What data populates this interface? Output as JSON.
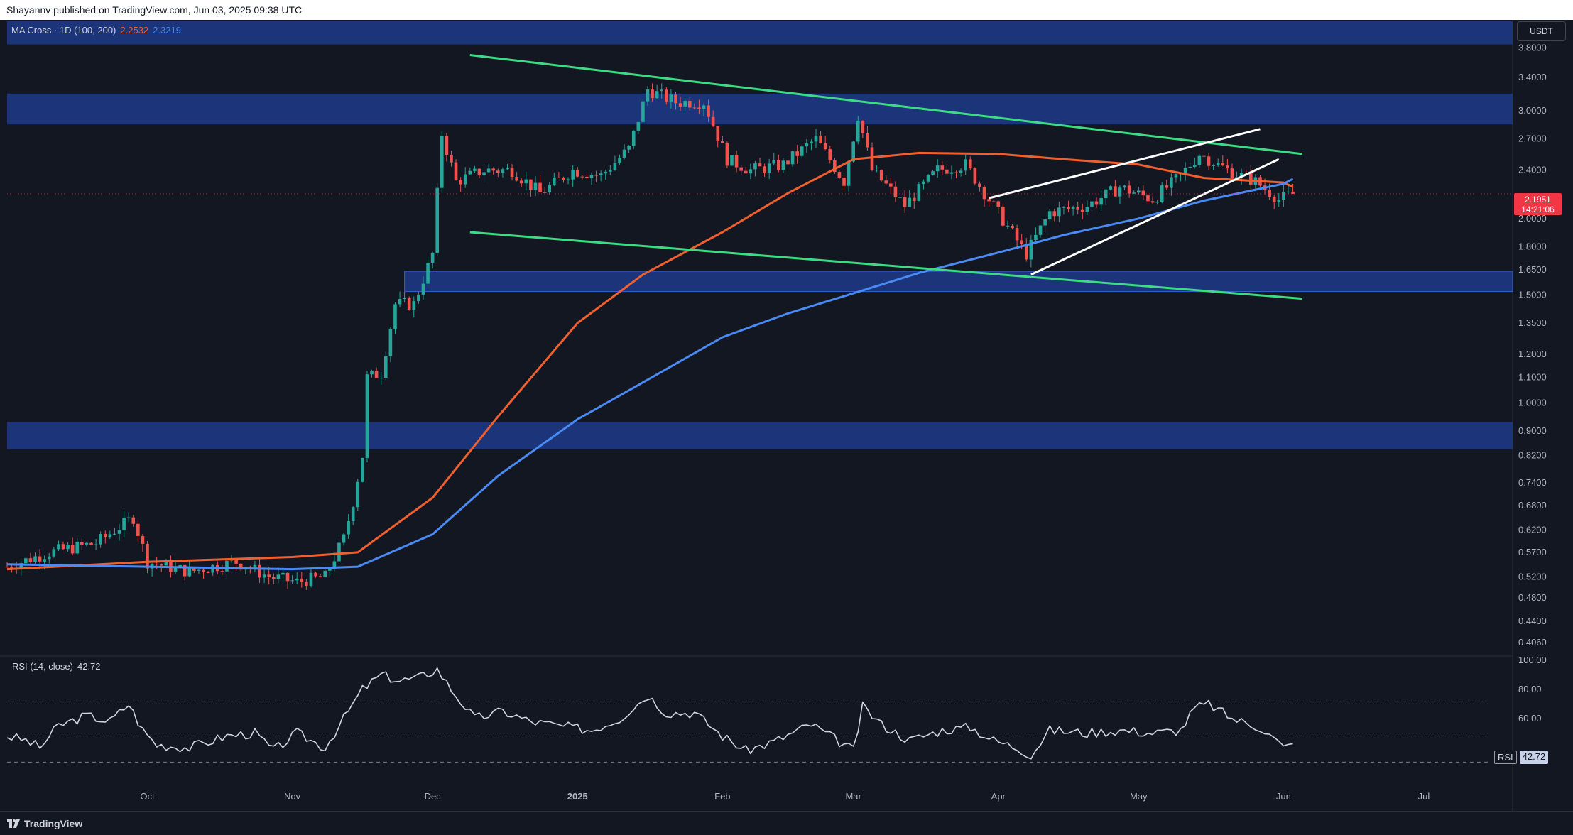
{
  "header": {
    "publisher_text": "Shayannv published on TradingView.com, Jun 03, 2025 09:38 UTC"
  },
  "legend": {
    "indicator": "MA Cross · 1D (100, 200)",
    "ma100_value": "2.2532",
    "ma200_value": "2.3219"
  },
  "currency_button": "USDT",
  "price_badge": {
    "price": "2.1951",
    "countdown": "14:21:06"
  },
  "rsi": {
    "label": "RSI (14, close)",
    "value": "42.72",
    "badge_label": "RSI",
    "badge_value": "42.72"
  },
  "footer": {
    "brand": "TradingView"
  },
  "colors": {
    "background": "#131722",
    "bull": "#26a69a",
    "bear": "#ef5350",
    "ma100": "#f0602f",
    "ma200": "#4a8af4",
    "zone": "#1d3a8a",
    "channel": "#3ddc84",
    "wedge": "#ffffff",
    "rsi_line": "#d1d4dc",
    "price_badge": "#f23645"
  },
  "chart_data": [
    {
      "type": "candlestick",
      "title": "",
      "ylabel": "USDT",
      "yscale": "log",
      "y_ticks": [
        "3.8000",
        "3.4000",
        "3.0000",
        "2.7000",
        "2.4000",
        "2.0000",
        "1.8000",
        "1.6500",
        "1.5000",
        "1.3500",
        "1.2000",
        "1.1000",
        "1.0000",
        "0.9000",
        "0.8200",
        "0.7400",
        "0.6800",
        "0.6200",
        "0.5700",
        "0.5200",
        "0.4800",
        "0.4400",
        "0.4060"
      ],
      "x_ticks": [
        "Oct",
        "Nov",
        "Dec",
        "2025",
        "Feb",
        "Mar",
        "Apr",
        "May",
        "Jun",
        "Jul"
      ],
      "x_tick_dates": [
        "2024-10-01",
        "2024-11-01",
        "2024-12-01",
        "2025-01-01",
        "2025-02-01",
        "2025-03-01",
        "2025-04-01",
        "2025-05-01",
        "2025-06-01",
        "2025-07-01"
      ],
      "x_range": [
        "2024-09-01",
        "2025-07-20"
      ],
      "y_range": [
        0.39,
        4.2
      ],
      "close_path": [
        [
          "2024-09-01",
          0.54
        ],
        [
          "2024-09-10",
          0.57
        ],
        [
          "2024-09-20",
          0.59
        ],
        [
          "2024-09-28",
          0.65
        ],
        [
          "2024-10-01",
          0.55
        ],
        [
          "2024-10-10",
          0.53
        ],
        [
          "2024-10-20",
          0.55
        ],
        [
          "2024-10-27",
          0.52
        ],
        [
          "2024-11-02",
          0.51
        ],
        [
          "2024-11-08",
          0.52
        ],
        [
          "2024-11-12",
          0.6
        ],
        [
          "2024-11-14",
          0.69
        ],
        [
          "2024-11-16",
          0.82
        ],
        [
          "2024-11-17",
          1.1
        ],
        [
          "2024-11-20",
          1.12
        ],
        [
          "2024-11-23",
          1.45
        ],
        [
          "2024-11-27",
          1.45
        ],
        [
          "2024-12-01",
          1.75
        ],
        [
          "2024-12-03",
          2.75
        ],
        [
          "2024-12-06",
          2.3
        ],
        [
          "2024-12-12",
          2.4
        ],
        [
          "2024-12-18",
          2.4
        ],
        [
          "2024-12-24",
          2.2
        ],
        [
          "2024-12-31",
          2.4
        ],
        [
          "2025-01-06",
          2.35
        ],
        [
          "2025-01-12",
          2.6
        ],
        [
          "2025-01-16",
          3.25
        ],
        [
          "2025-01-22",
          3.1
        ],
        [
          "2025-01-28",
          3.1
        ],
        [
          "2025-02-02",
          2.5
        ],
        [
          "2025-02-07",
          2.4
        ],
        [
          "2025-02-14",
          2.45
        ],
        [
          "2025-02-21",
          2.7
        ],
        [
          "2025-02-27",
          2.3
        ],
        [
          "2025-03-02",
          2.95
        ],
        [
          "2025-03-05",
          2.4
        ],
        [
          "2025-03-12",
          2.1
        ],
        [
          "2025-03-19",
          2.4
        ],
        [
          "2025-03-25",
          2.45
        ],
        [
          "2025-03-30",
          2.15
        ],
        [
          "2025-04-07",
          1.75
        ],
        [
          "2025-04-12",
          2.05
        ],
        [
          "2025-04-20",
          2.1
        ],
        [
          "2025-04-27",
          2.25
        ],
        [
          "2025-05-04",
          2.15
        ],
        [
          "2025-05-10",
          2.35
        ],
        [
          "2025-05-14",
          2.55
        ],
        [
          "2025-05-20",
          2.4
        ],
        [
          "2025-05-26",
          2.3
        ],
        [
          "2025-05-31",
          2.15
        ],
        [
          "2025-06-03",
          2.195
        ]
      ],
      "series": [
        {
          "name": "MA100",
          "points": [
            [
              "2024-09-01",
              0.535
            ],
            [
              "2024-10-01",
              0.55
            ],
            [
              "2024-11-01",
              0.56
            ],
            [
              "2024-11-15",
              0.57
            ],
            [
              "2024-12-01",
              0.7
            ],
            [
              "2024-12-15",
              0.95
            ],
            [
              "2025-01-01",
              1.35
            ],
            [
              "2025-01-15",
              1.62
            ],
            [
              "2025-02-01",
              1.9
            ],
            [
              "2025-02-15",
              2.2
            ],
            [
              "2025-03-01",
              2.5
            ],
            [
              "2025-03-15",
              2.56
            ],
            [
              "2025-04-01",
              2.55
            ],
            [
              "2025-04-15",
              2.5
            ],
            [
              "2025-05-01",
              2.45
            ],
            [
              "2025-05-15",
              2.33
            ],
            [
              "2025-06-01",
              2.29
            ],
            [
              "2025-06-03",
              2.2532
            ]
          ]
        },
        {
          "name": "MA200",
          "points": [
            [
              "2024-09-01",
              0.545
            ],
            [
              "2024-10-01",
              0.54
            ],
            [
              "2024-11-01",
              0.535
            ],
            [
              "2024-11-15",
              0.54
            ],
            [
              "2024-12-01",
              0.61
            ],
            [
              "2024-12-15",
              0.76
            ],
            [
              "2025-01-01",
              0.94
            ],
            [
              "2025-01-15",
              1.08
            ],
            [
              "2025-02-01",
              1.28
            ],
            [
              "2025-02-15",
              1.4
            ],
            [
              "2025-03-01",
              1.51
            ],
            [
              "2025-03-15",
              1.63
            ],
            [
              "2025-04-01",
              1.76
            ],
            [
              "2025-04-15",
              1.88
            ],
            [
              "2025-05-01",
              2.0
            ],
            [
              "2025-05-15",
              2.14
            ],
            [
              "2025-06-01",
              2.28
            ],
            [
              "2025-06-03",
              2.3219
            ]
          ]
        }
      ],
      "zones": [
        [
          3.85,
          4.2
        ],
        [
          2.85,
          3.2
        ],
        [
          1.52,
          1.64
        ],
        [
          0.84,
          0.93
        ]
      ],
      "trendlines": [
        {
          "role": "channel-upper",
          "from": [
            "2024-12-09",
            3.7
          ],
          "to": [
            "2025-06-05",
            2.55
          ]
        },
        {
          "role": "channel-lower",
          "from": [
            "2024-12-09",
            1.9
          ],
          "to": [
            "2025-06-05",
            1.48
          ]
        },
        {
          "role": "wedge-upper",
          "from": [
            "2025-03-30",
            2.16
          ],
          "to": [
            "2025-05-27",
            2.8
          ]
        },
        {
          "role": "wedge-lower",
          "from": [
            "2025-04-08",
            1.62
          ],
          "to": [
            "2025-05-31",
            2.5
          ]
        }
      ],
      "last_price": 2.1951
    },
    {
      "type": "line",
      "title": "RSI (14, close)",
      "y_ticks": [
        "100.00",
        "80.00",
        "60.00"
      ],
      "y_range": [
        18,
        100
      ],
      "guide_levels": [
        70,
        50,
        30
      ],
      "series": [
        {
          "name": "RSI",
          "points": [
            [
              "2024-09-01",
              48
            ],
            [
              "2024-09-05",
              45
            ],
            [
              "2024-09-08",
              40
            ],
            [
              "2024-09-12",
              55
            ],
            [
              "2024-09-18",
              62
            ],
            [
              "2024-09-23",
              58
            ],
            [
              "2024-09-27",
              70
            ],
            [
              "2024-09-30",
              52
            ],
            [
              "2024-10-03",
              42
            ],
            [
              "2024-10-10",
              40
            ],
            [
              "2024-10-18",
              48
            ],
            [
              "2024-10-24",
              50
            ],
            [
              "2024-10-28",
              38
            ],
            [
              "2024-11-02",
              50
            ],
            [
              "2024-11-08",
              40
            ],
            [
              "2024-11-12",
              60
            ],
            [
              "2024-11-16",
              80
            ],
            [
              "2024-11-20",
              90
            ],
            [
              "2024-11-24",
              86
            ],
            [
              "2024-11-28",
              88
            ],
            [
              "2024-12-02",
              94
            ],
            [
              "2024-12-05",
              80
            ],
            [
              "2024-12-10",
              60
            ],
            [
              "2024-12-16",
              65
            ],
            [
              "2024-12-22",
              58
            ],
            [
              "2024-12-28",
              55
            ],
            [
              "2025-01-04",
              52
            ],
            [
              "2025-01-10",
              60
            ],
            [
              "2025-01-16",
              76
            ],
            [
              "2025-01-20",
              64
            ],
            [
              "2025-01-26",
              64
            ],
            [
              "2025-02-01",
              48
            ],
            [
              "2025-02-06",
              38
            ],
            [
              "2025-02-12",
              44
            ],
            [
              "2025-02-20",
              56
            ],
            [
              "2025-02-27",
              42
            ],
            [
              "2025-03-01",
              38
            ],
            [
              "2025-03-03",
              68
            ],
            [
              "2025-03-07",
              56
            ],
            [
              "2025-03-13",
              45
            ],
            [
              "2025-03-20",
              52
            ],
            [
              "2025-03-26",
              54
            ],
            [
              "2025-03-31",
              45
            ],
            [
              "2025-04-05",
              40
            ],
            [
              "2025-04-08",
              35
            ],
            [
              "2025-04-12",
              52
            ],
            [
              "2025-04-20",
              50
            ],
            [
              "2025-04-27",
              52
            ],
            [
              "2025-05-04",
              50
            ],
            [
              "2025-05-10",
              52
            ],
            [
              "2025-05-13",
              67
            ],
            [
              "2025-05-16",
              70
            ],
            [
              "2025-05-21",
              60
            ],
            [
              "2025-05-27",
              54
            ],
            [
              "2025-05-30",
              46
            ],
            [
              "2025-06-01",
              40
            ],
            [
              "2025-06-03",
              42.72
            ]
          ]
        }
      ]
    }
  ]
}
